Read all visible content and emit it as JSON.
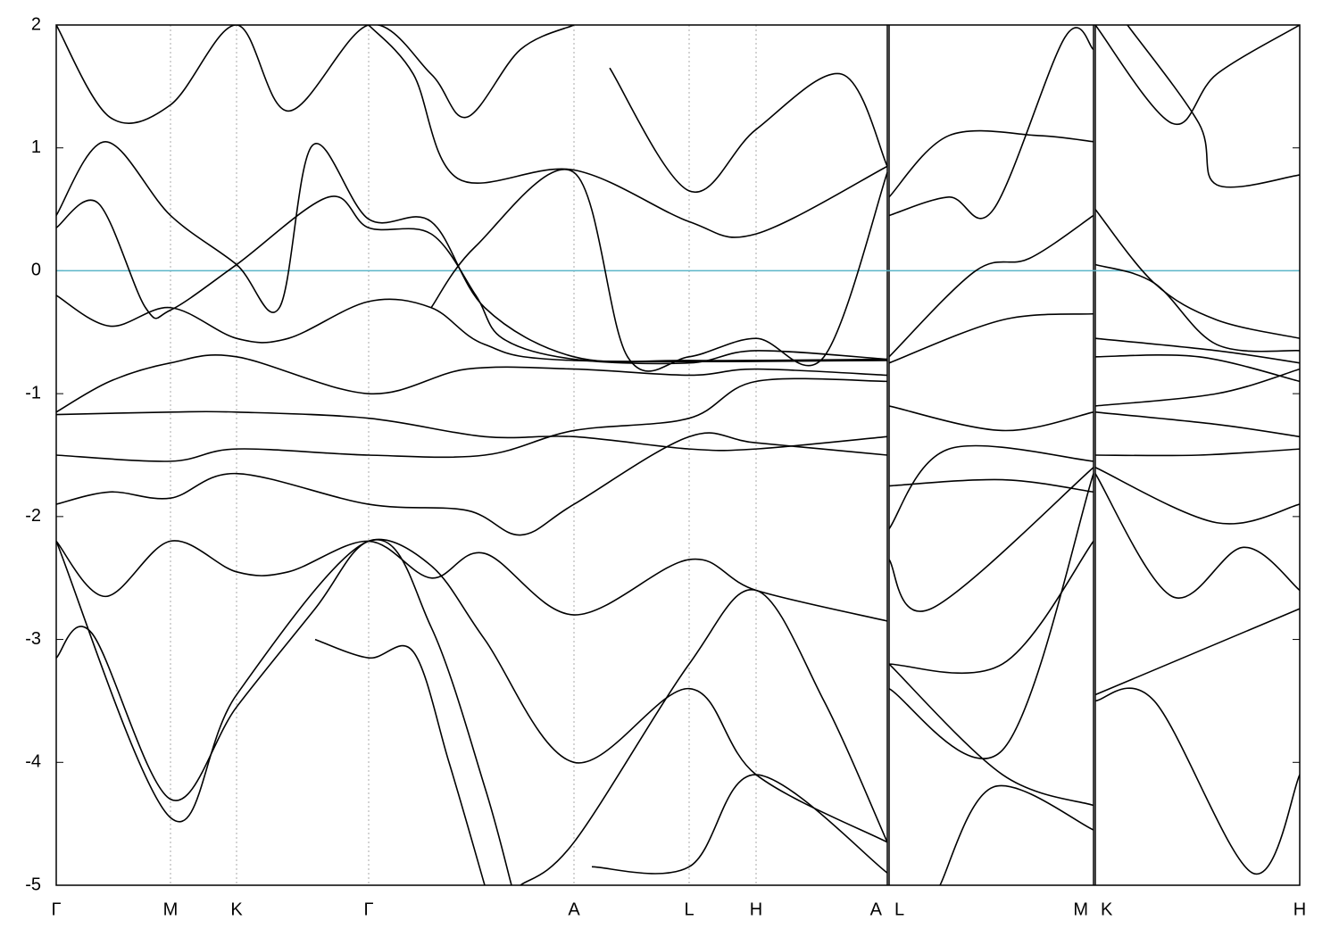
{
  "chart_data": {
    "type": "line",
    "line_color": "#000000",
    "fermi_level": 0,
    "fermi_color": "#5ab4c8",
    "grid": true,
    "xlim": [
      0,
      1393
    ],
    "xticks": [
      {
        "value": 0,
        "label": "Γ"
      },
      {
        "value": 128,
        "label": "M"
      },
      {
        "value": 202,
        "label": "K"
      },
      {
        "value": 350,
        "label": "Γ"
      },
      {
        "value": 580,
        "label": "A"
      },
      {
        "value": 709,
        "label": "L"
      },
      {
        "value": 784,
        "label": "H"
      },
      {
        "value": 931,
        "label": "A"
      },
      {
        "value": 933,
        "label": "L"
      },
      {
        "value": 1162,
        "label": "M"
      },
      {
        "value": 1164,
        "label": "K"
      },
      {
        "value": 1393,
        "label": "H"
      }
    ],
    "ylim": [
      -5,
      2
    ],
    "yticks": [
      2,
      1,
      0,
      -1,
      -2,
      -3,
      -4,
      -5
    ],
    "series": [
      {
        "x": [
          0,
          55,
          128,
          202,
          250,
          287,
          350,
          420,
          480,
          580,
          709,
          931
        ],
        "values": [
          0.45,
          1.05,
          0.45,
          0.05,
          -0.3,
          1.02,
          0.42,
          0.4,
          -0.3,
          -0.7,
          -0.73,
          -0.72
        ]
      },
      {
        "x": [
          0,
          47,
          100,
          128,
          202,
          305,
          350,
          420,
          470,
          500,
          580,
          709,
          784,
          931
        ],
        "values": [
          0.35,
          0.55,
          -0.3,
          -0.32,
          0.05,
          0.6,
          0.35,
          0.3,
          -0.2,
          -0.55,
          -0.72,
          -0.75,
          -0.65,
          -0.72
        ]
      },
      {
        "x": [
          420,
          470,
          580,
          640,
          709,
          784,
          860,
          931
        ],
        "values": [
          -0.3,
          0.2,
          0.8,
          -0.7,
          -0.7,
          -0.55,
          -0.7,
          0.8
        ]
      },
      {
        "x": [
          350,
          400,
          450,
          580,
          709,
          784,
          931
        ],
        "values": [
          2.0,
          1.6,
          0.75,
          0.82,
          0.4,
          0.3,
          0.85
        ]
      },
      {
        "x": [
          0,
          60,
          128,
          202,
          260,
          350,
          420,
          480,
          580,
          931
        ],
        "values": [
          -0.2,
          -0.45,
          -0.3,
          -0.55,
          -0.55,
          -0.25,
          -0.3,
          -0.6,
          -0.73,
          -0.73
        ]
      },
      {
        "x": [
          0,
          60,
          128,
          202,
          350,
          460,
          580,
          709,
          784,
          931
        ],
        "values": [
          -1.15,
          -0.9,
          -0.75,
          -0.7,
          -1.0,
          -0.8,
          -0.8,
          -0.85,
          -0.8,
          -0.85
        ]
      },
      {
        "x": [
          0,
          128,
          202,
          350,
          480,
          580,
          709,
          784,
          931
        ],
        "values": [
          -1.17,
          -1.15,
          -1.15,
          -1.2,
          -1.35,
          -1.35,
          -1.45,
          -1.45,
          -1.35
        ]
      },
      {
        "x": [
          0,
          128,
          202,
          350,
          480,
          580,
          709,
          784,
          931
        ],
        "values": [
          -1.5,
          -1.55,
          -1.45,
          -1.5,
          -1.5,
          -1.3,
          -1.2,
          -0.9,
          -0.9
        ]
      },
      {
        "x": [
          0,
          60,
          128,
          202,
          350,
          460,
          520,
          580,
          709,
          784,
          931
        ],
        "values": [
          -1.9,
          -1.8,
          -1.85,
          -1.65,
          -1.9,
          -1.95,
          -2.15,
          -1.9,
          -1.35,
          -1.4,
          -1.5
        ]
      },
      {
        "x": [
          0,
          55,
          128,
          202,
          260,
          350,
          420,
          480,
          580,
          709,
          784,
          931
        ],
        "values": [
          -2.2,
          -2.65,
          -2.2,
          -2.45,
          -2.45,
          -2.2,
          -2.5,
          -2.3,
          -2.8,
          -2.35,
          -2.6,
          -2.85
        ]
      },
      {
        "x": [
          0,
          40,
          128,
          202,
          290,
          350,
          420,
          480,
          580,
          709,
          784,
          931
        ],
        "values": [
          -3.15,
          -2.95,
          -4.3,
          -3.55,
          -2.75,
          -2.2,
          -2.4,
          -3.0,
          -4.0,
          -3.4,
          -4.1,
          -4.65
        ]
      },
      {
        "x": [
          0,
          128,
          202,
          350,
          420,
          480,
          510
        ],
        "values": [
          -2.2,
          -4.45,
          -3.45,
          -2.2,
          -2.9,
          -4.2,
          -5.0
        ]
      },
      {
        "x": [
          290,
          350,
          400,
          440,
          480
        ],
        "values": [
          -3.0,
          -3.15,
          -3.1,
          -4.0,
          -5.0
        ]
      },
      {
        "x": [
          520,
          580,
          709,
          784,
          860,
          931
        ],
        "values": [
          -5.0,
          -4.65,
          -3.2,
          -2.6,
          -3.5,
          -4.65
        ]
      },
      {
        "x": [
          600,
          709,
          784,
          931
        ],
        "values": [
          -4.85,
          -4.85,
          -4.1,
          -4.9
        ]
      },
      {
        "x": [
          0,
          60,
          128,
          202,
          260,
          350,
          420,
          460,
          520,
          580
        ],
        "values": [
          2.0,
          1.25,
          1.35,
          2.0,
          1.3,
          2.0,
          1.6,
          1.25,
          1.8,
          2.0
        ]
      },
      {
        "x": [
          620,
          709,
          784,
          880,
          931
        ],
        "values": [
          1.65,
          0.65,
          1.15,
          1.6,
          0.85
        ]
      },
      {
        "x": [
          933,
          1000,
          1100,
          1162
        ],
        "values": [
          0.6,
          1.1,
          1.1,
          1.05
        ]
      },
      {
        "x": [
          933,
          1000,
          1050,
          1130,
          1162
        ],
        "values": [
          0.45,
          0.6,
          0.5,
          1.9,
          1.8
        ]
      },
      {
        "x": [
          933,
          1030,
          1090,
          1162
        ],
        "values": [
          -0.7,
          0.0,
          0.1,
          0.45
        ]
      },
      {
        "x": [
          933,
          1060,
          1162
        ],
        "values": [
          -0.75,
          -0.4,
          -0.35
        ]
      },
      {
        "x": [
          933,
          1060,
          1162
        ],
        "values": [
          -1.1,
          -1.3,
          -1.15
        ]
      },
      {
        "x": [
          933,
          1060,
          1162
        ],
        "values": [
          -1.75,
          -1.7,
          -1.8
        ]
      },
      {
        "x": [
          933,
          1000,
          1162
        ],
        "values": [
          -2.1,
          -1.45,
          -1.55
        ]
      },
      {
        "x": [
          933,
          980,
          1162
        ],
        "values": [
          -2.35,
          -2.75,
          -1.6
        ]
      },
      {
        "x": [
          933,
          1060,
          1162
        ],
        "values": [
          -3.2,
          -3.2,
          -2.2
        ]
      },
      {
        "x": [
          933,
          1060,
          1162
        ],
        "values": [
          -3.4,
          -3.9,
          -1.65
        ]
      },
      {
        "x": [
          933,
          1060,
          1162
        ],
        "values": [
          -3.2,
          -4.1,
          -4.35
        ]
      },
      {
        "x": [
          990,
          1050,
          1162
        ],
        "values": [
          -5.0,
          -4.2,
          -4.55
        ]
      },
      {
        "x": [
          1164,
          1230,
          1300,
          1393
        ],
        "values": [
          0.5,
          -0.1,
          -0.4,
          -0.55
        ]
      },
      {
        "x": [
          1164,
          1230,
          1300,
          1393
        ],
        "values": [
          0.05,
          -0.1,
          -0.6,
          -0.65
        ]
      },
      {
        "x": [
          1164,
          1300,
          1393
        ],
        "values": [
          -0.55,
          -0.65,
          -0.75
        ]
      },
      {
        "x": [
          1164,
          1280,
          1393
        ],
        "values": [
          -0.7,
          -0.7,
          -0.9
        ]
      },
      {
        "x": [
          1164,
          1300,
          1393
        ],
        "values": [
          -1.1,
          -1.0,
          -0.8
        ]
      },
      {
        "x": [
          1164,
          1300,
          1393
        ],
        "values": [
          -1.15,
          -1.25,
          -1.35
        ]
      },
      {
        "x": [
          1164,
          1280,
          1393
        ],
        "values": [
          -1.5,
          -1.5,
          -1.45
        ]
      },
      {
        "x": [
          1164,
          1300,
          1393
        ],
        "values": [
          -1.6,
          -2.05,
          -1.9
        ]
      },
      {
        "x": [
          1164,
          1250,
          1330,
          1393
        ],
        "values": [
          -1.65,
          -2.65,
          -2.25,
          -2.6
        ]
      },
      {
        "x": [
          1164,
          1393
        ],
        "values": [
          -3.45,
          -2.75
        ]
      },
      {
        "x": [
          1164,
          1230,
          1340,
          1393
        ],
        "values": [
          -3.5,
          -3.5,
          -4.9,
          -4.1
        ]
      },
      {
        "x": [
          1164,
          1250,
          1300,
          1393
        ],
        "values": [
          2.0,
          1.2,
          1.6,
          2.0
        ]
      },
      {
        "x": [
          1200,
          1280,
          1300,
          1393
        ],
        "values": [
          2.0,
          1.2,
          0.7,
          0.78
        ]
      }
    ]
  }
}
